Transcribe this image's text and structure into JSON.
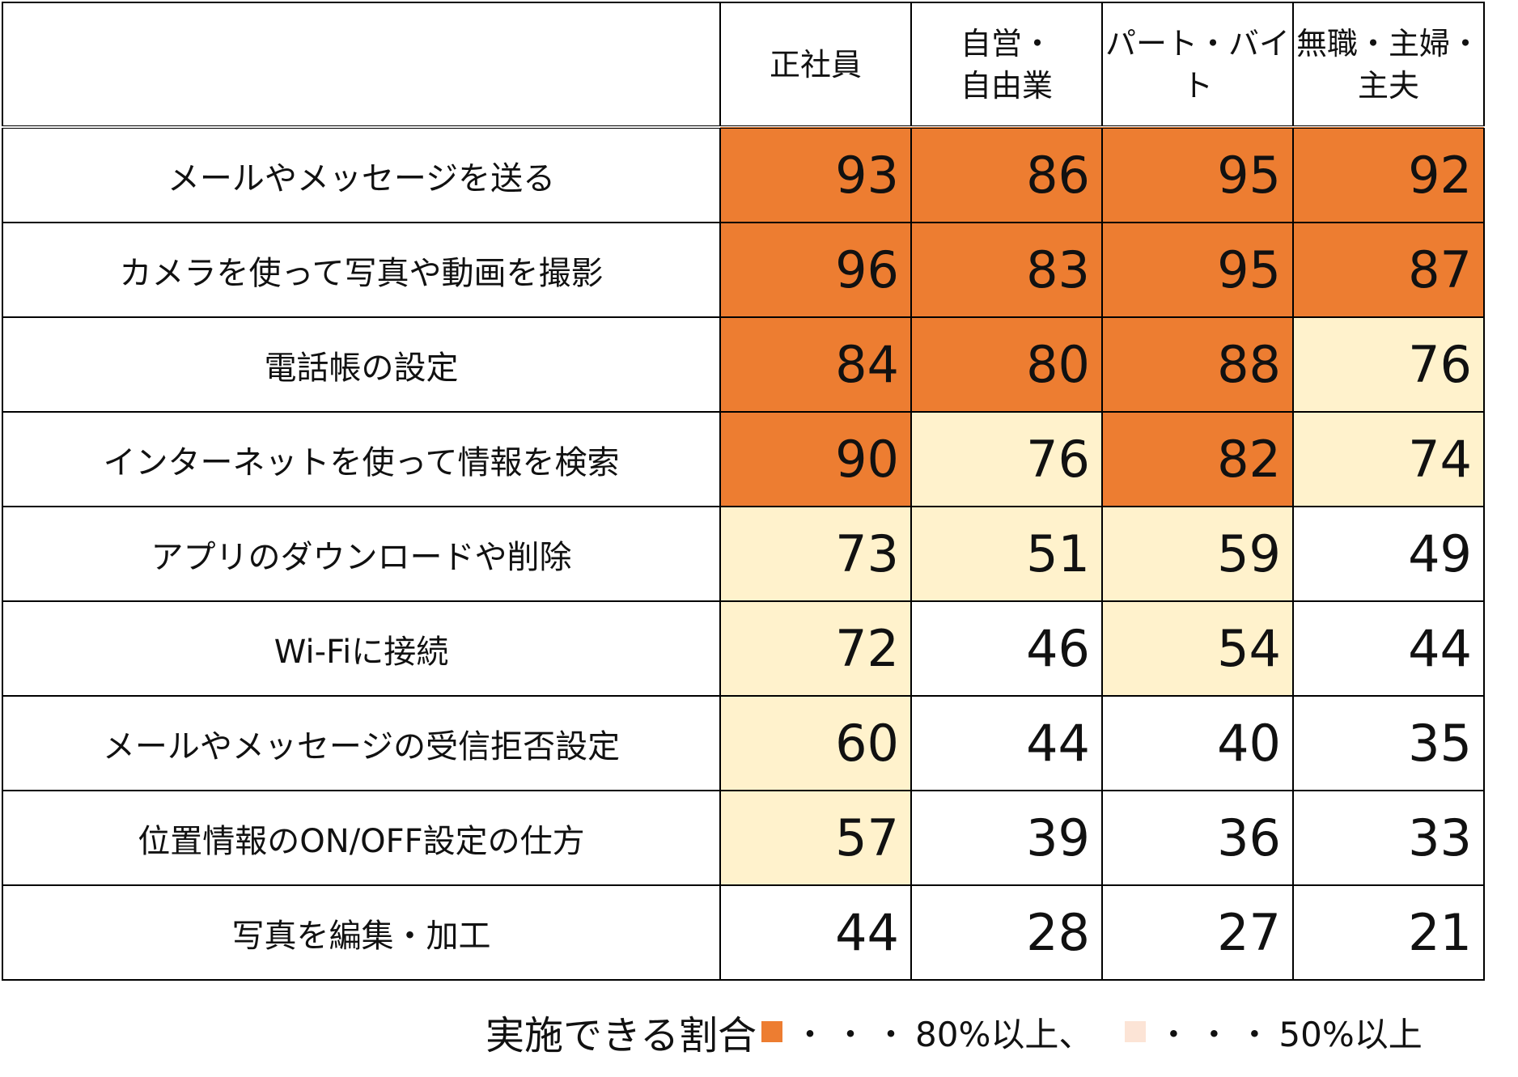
{
  "chart_data": {
    "type": "table",
    "columns": [
      "正社員",
      "自営・\n自由業",
      "パート・バイト",
      "無職・主婦・\n主夫"
    ],
    "rows": [
      {
        "label": "メールやメッセージを送る",
        "values": [
          93,
          86,
          95,
          92
        ]
      },
      {
        "label": "カメラを使って写真や動画を撮影",
        "values": [
          96,
          83,
          95,
          87
        ]
      },
      {
        "label": "電話帳の設定",
        "values": [
          84,
          80,
          88,
          76
        ]
      },
      {
        "label": "インターネットを使って情報を検索",
        "values": [
          90,
          76,
          82,
          74
        ]
      },
      {
        "label": "アプリのダウンロードや削除",
        "values": [
          73,
          51,
          59,
          49
        ]
      },
      {
        "label": "Wi-Fiに接続",
        "values": [
          72,
          46,
          54,
          44
        ]
      },
      {
        "label": "メールやメッセージの受信拒否設定",
        "values": [
          60,
          44,
          40,
          35
        ]
      },
      {
        "label": "位置情報のON/OFF設定の仕方",
        "values": [
          57,
          39,
          36,
          33
        ]
      },
      {
        "label": "写真を編集・加工",
        "values": [
          44,
          28,
          27,
          21
        ]
      }
    ],
    "thresholds": {
      "high": 80,
      "mid": 50
    },
    "colors": {
      "high": "#ED7D31",
      "mid": "#FFF2CC",
      "low": "#FFFFFF",
      "legend_mid_swatch": "#FCE4D6"
    }
  },
  "legend": {
    "prefix": "実施できる割合",
    "dots": "・・・",
    "high_text": "80%以上、",
    "mid_text": "50%以上"
  }
}
